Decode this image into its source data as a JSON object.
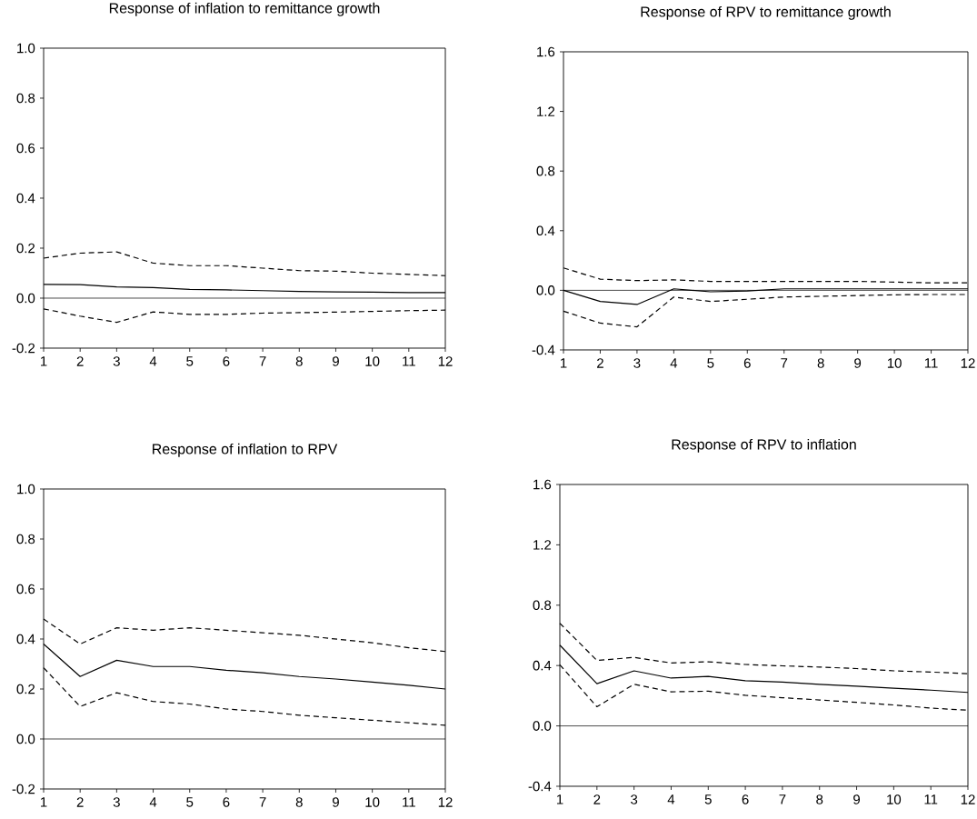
{
  "chart_data": [
    {
      "type": "line",
      "title": "Response of inflation to remittance growth",
      "x": [
        1,
        2,
        3,
        4,
        5,
        6,
        7,
        8,
        9,
        10,
        11,
        12
      ],
      "xlim": [
        1,
        12
      ],
      "xticks": [
        1,
        2,
        3,
        4,
        5,
        6,
        7,
        8,
        9,
        10,
        11,
        12
      ],
      "ylim": [
        -0.2,
        1.0
      ],
      "yticks": [
        {
          "value": -0.2,
          "label": "-0.2"
        },
        {
          "value": 0.0,
          "label": "0.0"
        },
        {
          "value": 0.2,
          "label": "0.2"
        },
        {
          "value": 0.4,
          "label": "0.4"
        },
        {
          "value": 0.6,
          "label": "0.6"
        },
        {
          "value": 0.8,
          "label": "0.8"
        },
        {
          "value": 1.0,
          "label": "1.0"
        }
      ],
      "ref_lines": [
        {
          "axis": "y",
          "value": 0,
          "color": "#000000"
        }
      ],
      "series": [
        {
          "color": "#000000",
          "line_style": "solid",
          "values": [
            0.055,
            0.054,
            0.045,
            0.042,
            0.035,
            0.033,
            0.03,
            0.027,
            0.025,
            0.024,
            0.022,
            0.022
          ]
        },
        {
          "color": "#000000",
          "line_style": "dashed",
          "values": [
            0.16,
            0.18,
            0.185,
            0.14,
            0.13,
            0.13,
            0.12,
            0.11,
            0.108,
            0.1,
            0.095,
            0.09
          ]
        },
        {
          "color": "#000000",
          "line_style": "dashed",
          "values": [
            -0.043,
            -0.072,
            -0.097,
            -0.055,
            -0.065,
            -0.065,
            -0.06,
            -0.058,
            -0.056,
            -0.053,
            -0.05,
            -0.048
          ]
        }
      ]
    },
    {
      "type": "line",
      "title": "Response of RPV to remittance growth",
      "x": [
        1,
        2,
        3,
        4,
        5,
        6,
        7,
        8,
        9,
        10,
        11,
        12
      ],
      "xlim": [
        1,
        12
      ],
      "xticks": [
        1,
        2,
        3,
        4,
        5,
        6,
        7,
        8,
        9,
        10,
        11,
        12
      ],
      "ylim": [
        -0.4,
        1.6
      ],
      "yticks": [
        {
          "value": -0.4,
          "label": "-0.4"
        },
        {
          "value": 0.0,
          "label": "0.0"
        },
        {
          "value": 0.4,
          "label": "0.4"
        },
        {
          "value": 0.8,
          "label": "0.8"
        },
        {
          "value": 1.2,
          "label": "1.2"
        },
        {
          "value": 1.6,
          "label": "1.6"
        }
      ],
      "ref_lines": [
        {
          "axis": "y",
          "value": 0,
          "color": "#000000"
        }
      ],
      "series": [
        {
          "color": "#000000",
          "line_style": "solid",
          "values": [
            0.0,
            -0.075,
            -0.095,
            0.01,
            -0.01,
            -0.005,
            0.01,
            0.01,
            0.01,
            0.01,
            0.01,
            0.01
          ]
        },
        {
          "color": "#000000",
          "line_style": "dashed",
          "values": [
            0.15,
            0.075,
            0.065,
            0.07,
            0.06,
            0.06,
            0.06,
            0.06,
            0.06,
            0.055,
            0.05,
            0.05
          ]
        },
        {
          "color": "#000000",
          "line_style": "dashed",
          "values": [
            -0.14,
            -0.22,
            -0.245,
            -0.045,
            -0.075,
            -0.06,
            -0.045,
            -0.04,
            -0.035,
            -0.03,
            -0.028,
            -0.028
          ]
        }
      ]
    },
    {
      "type": "line",
      "title": "Response of inflation to RPV",
      "x": [
        1,
        2,
        3,
        4,
        5,
        6,
        7,
        8,
        9,
        10,
        11,
        12
      ],
      "xlim": [
        1,
        12
      ],
      "xticks": [
        1,
        2,
        3,
        4,
        5,
        6,
        7,
        8,
        9,
        10,
        11,
        12
      ],
      "ylim": [
        -0.2,
        1.0
      ],
      "yticks": [
        {
          "value": -0.2,
          "label": "-0.2"
        },
        {
          "value": 0.0,
          "label": "0.0"
        },
        {
          "value": 0.2,
          "label": "0.2"
        },
        {
          "value": 0.4,
          "label": "0.4"
        },
        {
          "value": 0.6,
          "label": "0.6"
        },
        {
          "value": 0.8,
          "label": "0.8"
        },
        {
          "value": 1.0,
          "label": "1.0"
        }
      ],
      "ref_lines": [
        {
          "axis": "y",
          "value": 0,
          "color": "#000000"
        }
      ],
      "series": [
        {
          "color": "#000000",
          "line_style": "solid",
          "values": [
            0.38,
            0.25,
            0.315,
            0.29,
            0.29,
            0.275,
            0.265,
            0.25,
            0.24,
            0.228,
            0.215,
            0.2
          ]
        },
        {
          "color": "#000000",
          "line_style": "dashed",
          "values": [
            0.48,
            0.38,
            0.445,
            0.435,
            0.445,
            0.435,
            0.425,
            0.415,
            0.4,
            0.385,
            0.365,
            0.35
          ]
        },
        {
          "color": "#000000",
          "line_style": "dashed",
          "values": [
            0.285,
            0.13,
            0.185,
            0.15,
            0.14,
            0.12,
            0.11,
            0.095,
            0.085,
            0.075,
            0.065,
            0.055
          ]
        }
      ]
    },
    {
      "type": "line",
      "title": "Response of RPV to inflation",
      "x": [
        1,
        2,
        3,
        4,
        5,
        6,
        7,
        8,
        9,
        10,
        11,
        12
      ],
      "xlim": [
        1,
        12
      ],
      "xticks": [
        1,
        2,
        3,
        4,
        5,
        6,
        7,
        8,
        9,
        10,
        11,
        12
      ],
      "ylim": [
        -0.4,
        1.6
      ],
      "yticks": [
        {
          "value": -0.4,
          "label": "-0.4"
        },
        {
          "value": 0.0,
          "label": "0.0"
        },
        {
          "value": 0.4,
          "label": "0.4"
        },
        {
          "value": 0.8,
          "label": "0.8"
        },
        {
          "value": 1.2,
          "label": "1.2"
        },
        {
          "value": 1.6,
          "label": "1.6"
        }
      ],
      "ref_lines": [
        {
          "axis": "y",
          "value": 0,
          "color": "#000000"
        }
      ],
      "series": [
        {
          "color": "#000000",
          "line_style": "solid",
          "values": [
            0.535,
            0.28,
            0.365,
            0.317,
            0.328,
            0.3,
            0.29,
            0.275,
            0.263,
            0.25,
            0.237,
            0.222
          ]
        },
        {
          "color": "#000000",
          "line_style": "dashed",
          "values": [
            0.68,
            0.434,
            0.454,
            0.417,
            0.425,
            0.407,
            0.398,
            0.39,
            0.38,
            0.365,
            0.357,
            0.346
          ]
        },
        {
          "color": "#000000",
          "line_style": "dashed",
          "values": [
            0.405,
            0.127,
            0.276,
            0.226,
            0.23,
            0.203,
            0.187,
            0.172,
            0.156,
            0.139,
            0.118,
            0.104
          ]
        }
      ]
    }
  ]
}
